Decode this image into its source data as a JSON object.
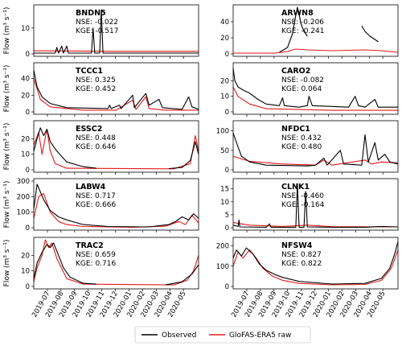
{
  "chart_data": {
    "type": "line",
    "shared_x": {
      "tick_labels": [
        "2019-07",
        "2019-08",
        "2019-09",
        "2019-10",
        "2019-11",
        "2019-12",
        "2020-01",
        "2020-02",
        "2020-03",
        "2020-04",
        "2020-05"
      ],
      "start": "2019-06",
      "end": "2020-06"
    },
    "ylabel": "Flow (m³ s⁻¹)",
    "legend": {
      "position": "bottom-center",
      "entries": [
        {
          "label": "Observed",
          "color": "#000000"
        },
        {
          "label": "GloFAS-ERA5 raw",
          "color": "#e41a1c"
        }
      ]
    },
    "panels": [
      {
        "station": "BNDN5",
        "nse": "NSE: -0.022",
        "kge": "KGE: -0.517",
        "yticks": [
          "0",
          "10"
        ],
        "ylim": [
          0,
          18
        ],
        "observed": [
          [
            0,
            0.3
          ],
          [
            0.13,
            0.3
          ],
          [
            0.14,
            2.5
          ],
          [
            0.15,
            0.3
          ],
          [
            0.17,
            3
          ],
          [
            0.18,
            0.3
          ],
          [
            0.2,
            3
          ],
          [
            0.21,
            0.3
          ],
          [
            0.35,
            0.3
          ],
          [
            0.36,
            10
          ],
          [
            0.37,
            0.3
          ],
          [
            0.4,
            0.3
          ],
          [
            0.41,
            17
          ],
          [
            0.42,
            0.3
          ],
          [
            1,
            0.3
          ]
        ],
        "simulated": [
          [
            0,
            1.2
          ],
          [
            0.5,
            1
          ],
          [
            1,
            1
          ]
        ]
      },
      {
        "station": "ARWN8",
        "nse": "NSE: -0.206",
        "kge": "KGE: -0.241",
        "yticks": [
          "0",
          "20",
          "40"
        ],
        "ylim": [
          0,
          58
        ],
        "observed": [
          [
            0.28,
            2
          ],
          [
            0.33,
            8
          ],
          [
            0.36,
            25
          ],
          [
            0.38,
            48
          ],
          [
            0.39,
            58
          ],
          [
            0.4,
            50
          ],
          [
            0.41,
            38
          ],
          [
            0.43,
            28
          ],
          [
            0.45,
            22
          ],
          null,
          [
            0.78,
            35
          ],
          [
            0.8,
            28
          ],
          [
            0.83,
            22
          ],
          [
            0.86,
            18
          ],
          [
            0.88,
            15
          ]
        ],
        "simulated": [
          [
            0,
            1
          ],
          [
            0.25,
            1
          ],
          [
            0.33,
            3
          ],
          [
            0.38,
            6
          ],
          [
            0.45,
            5
          ],
          [
            0.6,
            4
          ],
          [
            0.8,
            5
          ],
          [
            0.9,
            4
          ],
          [
            1,
            2
          ]
        ]
      },
      {
        "station": "TCCC1",
        "nse": "NSE: 0.325",
        "kge": "KGE: 0.452",
        "yticks": [
          "0",
          "20",
          "40"
        ],
        "ylim": [
          0,
          56
        ],
        "observed": [
          [
            0,
            50
          ],
          [
            0.02,
            30
          ],
          [
            0.05,
            18
          ],
          [
            0.1,
            10
          ],
          [
            0.2,
            5
          ],
          [
            0.45,
            4
          ],
          [
            0.46,
            8
          ],
          [
            0.47,
            4
          ],
          [
            0.52,
            8
          ],
          [
            0.53,
            4
          ],
          [
            0.6,
            20
          ],
          [
            0.61,
            5
          ],
          [
            0.68,
            22
          ],
          [
            0.7,
            8
          ],
          [
            0.76,
            15
          ],
          [
            0.78,
            5
          ],
          [
            0.9,
            3
          ],
          [
            0.94,
            18
          ],
          [
            0.96,
            6
          ],
          [
            1,
            3
          ]
        ],
        "simulated": [
          [
            0,
            40
          ],
          [
            0.04,
            15
          ],
          [
            0.1,
            6
          ],
          [
            0.3,
            2
          ],
          [
            0.5,
            2
          ],
          [
            0.6,
            14
          ],
          [
            0.62,
            3
          ],
          [
            0.68,
            18
          ],
          [
            0.7,
            4
          ],
          [
            0.8,
            2
          ],
          [
            1,
            2
          ]
        ]
      },
      {
        "station": "CARO2",
        "nse": "NSE: -0.082",
        "kge": "KGE: 0.064",
        "yticks": [
          "0",
          "10",
          "20"
        ],
        "ylim": [
          0,
          30
        ],
        "observed": [
          [
            0,
            28
          ],
          [
            0.01,
            20
          ],
          [
            0.03,
            16
          ],
          [
            0.06,
            14
          ],
          [
            0.1,
            12
          ],
          [
            0.15,
            8
          ],
          [
            0.2,
            5
          ],
          [
            0.28,
            4
          ],
          [
            0.3,
            9
          ],
          [
            0.31,
            4
          ],
          [
            0.4,
            3
          ],
          [
            0.45,
            4
          ],
          [
            0.46,
            10
          ],
          [
            0.48,
            4
          ],
          [
            0.7,
            3
          ],
          [
            0.74,
            10
          ],
          [
            0.76,
            4
          ],
          [
            0.8,
            3
          ],
          [
            0.86,
            8
          ],
          [
            0.88,
            3
          ],
          [
            1,
            3
          ]
        ],
        "simulated": [
          [
            0,
            16
          ],
          [
            0.03,
            10
          ],
          [
            0.1,
            5
          ],
          [
            0.2,
            2
          ],
          [
            0.4,
            1.5
          ],
          [
            0.6,
            1
          ],
          [
            1,
            1
          ]
        ]
      },
      {
        "station": "ESSC2",
        "nse": "NSE: 0.448",
        "kge": "KGE: 0.646",
        "yticks": [
          "0",
          "10",
          "20"
        ],
        "ylim": [
          0,
          30
        ],
        "observed": [
          [
            0,
            12
          ],
          [
            0.02,
            20
          ],
          [
            0.04,
            27
          ],
          [
            0.06,
            22
          ],
          [
            0.08,
            26
          ],
          [
            0.1,
            18
          ],
          [
            0.14,
            12
          ],
          [
            0.2,
            5
          ],
          [
            0.3,
            2
          ],
          [
            0.38,
            1
          ],
          null,
          [
            0.82,
            0.8
          ],
          [
            0.9,
            1.5
          ],
          [
            0.95,
            6
          ],
          [
            0.98,
            18
          ],
          [
            1,
            10
          ]
        ],
        "simulated": [
          [
            0,
            16
          ],
          [
            0.03,
            24
          ],
          [
            0.05,
            10
          ],
          [
            0.08,
            26
          ],
          [
            0.1,
            12
          ],
          [
            0.13,
            4
          ],
          [
            0.2,
            1
          ],
          [
            0.85,
            0.6
          ],
          [
            0.95,
            4
          ],
          [
            0.98,
            22
          ],
          [
            1,
            12
          ]
        ]
      },
      {
        "station": "NFDC1",
        "nse": "NSE: 0.432",
        "kge": "KGE: 0.480",
        "yticks": [
          "0",
          "50",
          "100"
        ],
        "ylim": [
          0,
          120
        ],
        "observed": [
          [
            0,
            95
          ],
          [
            0.02,
            70
          ],
          [
            0.05,
            35
          ],
          [
            0.1,
            20
          ],
          [
            0.2,
            12
          ],
          [
            0.45,
            10
          ],
          [
            0.5,
            12
          ],
          [
            0.55,
            30
          ],
          [
            0.57,
            12
          ],
          [
            0.65,
            50
          ],
          [
            0.67,
            15
          ],
          [
            0.78,
            12
          ],
          [
            0.8,
            90
          ],
          [
            0.82,
            20
          ],
          [
            0.86,
            70
          ],
          [
            0.88,
            25
          ],
          [
            0.92,
            40
          ],
          [
            0.95,
            20
          ],
          [
            1,
            15
          ]
        ],
        "simulated": [
          [
            0,
            35
          ],
          [
            0.05,
            28
          ],
          [
            0.1,
            22
          ],
          [
            0.3,
            15
          ],
          [
            0.5,
            12
          ],
          [
            0.55,
            25
          ],
          [
            0.6,
            12
          ],
          [
            0.8,
            25
          ],
          [
            0.84,
            15
          ],
          [
            0.9,
            20
          ],
          [
            1,
            18
          ]
        ]
      },
      {
        "station": "LABW4",
        "nse": "NSE: 0.717",
        "kge": "KGE: 0.666",
        "yticks": [
          "0",
          "100",
          "200",
          "300"
        ],
        "ylim": [
          0,
          300
        ],
        "observed": [
          [
            0,
            120
          ],
          [
            0.02,
            280
          ],
          [
            0.04,
            230
          ],
          [
            0.06,
            180
          ],
          [
            0.1,
            110
          ],
          [
            0.15,
            70
          ],
          [
            0.2,
            50
          ],
          [
            0.3,
            20
          ],
          [
            0.45,
            8
          ],
          [
            0.7,
            5
          ],
          [
            0.82,
            20
          ],
          [
            0.86,
            40
          ],
          [
            0.9,
            70
          ],
          [
            0.94,
            50
          ],
          [
            0.97,
            90
          ],
          [
            1,
            60
          ]
        ],
        "simulated": [
          [
            0,
            60
          ],
          [
            0.03,
            200
          ],
          [
            0.06,
            220
          ],
          [
            0.1,
            100
          ],
          [
            0.15,
            40
          ],
          [
            0.2,
            20
          ],
          [
            0.3,
            8
          ],
          [
            0.6,
            3
          ],
          [
            0.8,
            10
          ],
          [
            0.88,
            40
          ],
          [
            0.92,
            20
          ],
          [
            0.96,
            80
          ],
          [
            1,
            30
          ]
        ]
      },
      {
        "station": "CLNK1",
        "nse": "NSE: -0.460",
        "kge": "KGE: -0.164",
        "yticks": [
          "0",
          "5",
          "10",
          "15"
        ],
        "ylim": [
          0,
          18
        ],
        "observed": [
          [
            0,
            1
          ],
          [
            0.03,
            0.5
          ],
          [
            0.035,
            3
          ],
          [
            0.04,
            0.3
          ],
          [
            0.2,
            0.2
          ],
          [
            0.22,
            1.5
          ],
          [
            0.23,
            0.2
          ],
          [
            0.38,
            0.2
          ],
          [
            0.39,
            17
          ],
          [
            0.4,
            0.2
          ],
          [
            0.43,
            0.2
          ],
          [
            0.44,
            14
          ],
          [
            0.45,
            0.3
          ],
          [
            0.6,
            0.2
          ],
          [
            0.8,
            0.2
          ],
          [
            0.9,
            0.5
          ],
          [
            1,
            0.3
          ]
        ],
        "simulated": [
          [
            0,
            2
          ],
          [
            0.1,
            1
          ],
          [
            0.3,
            0.5
          ],
          [
            0.45,
            1
          ],
          [
            0.6,
            0.4
          ],
          [
            1,
            0.3
          ]
        ]
      },
      {
        "station": "TRAC2",
        "nse": "NSE: 0.659",
        "kge": "KGE: 0.716",
        "yticks": [
          "0",
          "10",
          "20"
        ],
        "ylim": [
          0,
          30
        ],
        "observed": [
          [
            0,
            5
          ],
          [
            0.02,
            15
          ],
          [
            0.05,
            22
          ],
          [
            0.08,
            27
          ],
          [
            0.1,
            25
          ],
          [
            0.12,
            28
          ],
          [
            0.15,
            20
          ],
          [
            0.18,
            12
          ],
          [
            0.22,
            6
          ],
          [
            0.3,
            2
          ],
          [
            0.38,
            1.5
          ],
          null,
          [
            0.8,
            1
          ],
          [
            0.9,
            3
          ],
          [
            0.96,
            8
          ],
          [
            1,
            14
          ]
        ],
        "simulated": [
          [
            0,
            3
          ],
          [
            0.02,
            12
          ],
          [
            0.05,
            20
          ],
          [
            0.07,
            30
          ],
          [
            0.09,
            25
          ],
          [
            0.11,
            28
          ],
          [
            0.14,
            18
          ],
          [
            0.2,
            5
          ],
          [
            0.3,
            1.5
          ],
          [
            0.85,
            1
          ],
          [
            0.93,
            4
          ],
          [
            0.97,
            10
          ],
          [
            1,
            20
          ]
        ]
      },
      {
        "station": "NFSW4",
        "nse": "NSE: 0.827",
        "kge": "KGE: 0.822",
        "yticks": [
          "0",
          "100",
          "200"
        ],
        "ylim": [
          0,
          230
        ],
        "observed": [
          [
            0,
            140
          ],
          [
            0.02,
            180
          ],
          [
            0.05,
            150
          ],
          [
            0.08,
            190
          ],
          [
            0.12,
            160
          ],
          [
            0.16,
            110
          ],
          [
            0.2,
            80
          ],
          [
            0.25,
            60
          ],
          [
            0.3,
            45
          ],
          [
            0.4,
            25
          ],
          [
            0.6,
            12
          ],
          [
            0.8,
            15
          ],
          [
            0.9,
            40
          ],
          [
            0.95,
            90
          ],
          [
            0.98,
            160
          ],
          [
            1,
            220
          ]
        ],
        "simulated": [
          [
            0,
            100
          ],
          [
            0.03,
            170
          ],
          [
            0.06,
            140
          ],
          [
            0.1,
            180
          ],
          [
            0.14,
            140
          ],
          [
            0.18,
            90
          ],
          [
            0.24,
            50
          ],
          [
            0.3,
            30
          ],
          [
            0.4,
            15
          ],
          [
            0.6,
            8
          ],
          [
            0.8,
            10
          ],
          [
            0.9,
            30
          ],
          [
            0.96,
            90
          ],
          [
            1,
            180
          ]
        ]
      }
    ]
  }
}
